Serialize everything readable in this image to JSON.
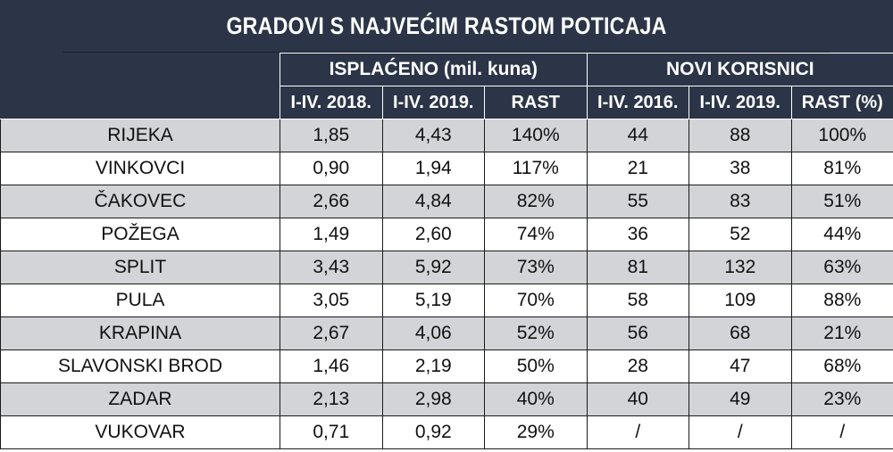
{
  "title": "GRADOVI S NAJVEĆIM RASTOM POTICAJA",
  "group_headers": {
    "isplaceno": "ISPLAĆENO (mil. kuna)",
    "novi_korisnici": "NOVI KORISNICI"
  },
  "columns": [
    "I-IV. 2018.",
    "I-IV. 2019.",
    "RAST",
    "I-IV. 2016.",
    "I-IV. 2019.",
    "RAST (%)"
  ],
  "rows": [
    {
      "city": "RIJEKA",
      "p2018": "1,85",
      "p2019": "4,43",
      "rast": "140%",
      "k2016": "44",
      "k2019": "88",
      "krast": "100%"
    },
    {
      "city": "VINKOVCI",
      "p2018": "0,90",
      "p2019": "1,94",
      "rast": "117%",
      "k2016": "21",
      "k2019": "38",
      "krast": "81%"
    },
    {
      "city": "ČAKOVEC",
      "p2018": "2,66",
      "p2019": "4,84",
      "rast": "82%",
      "k2016": "55",
      "k2019": "83",
      "krast": "51%"
    },
    {
      "city": "POŽEGA",
      "p2018": "1,49",
      "p2019": "2,60",
      "rast": "74%",
      "k2016": "36",
      "k2019": "52",
      "krast": "44%"
    },
    {
      "city": "SPLIT",
      "p2018": "3,43",
      "p2019": "5,92",
      "rast": "73%",
      "k2016": "81",
      "k2019": "132",
      "krast": "63%"
    },
    {
      "city": "PULA",
      "p2018": "3,05",
      "p2019": "5,19",
      "rast": "70%",
      "k2016": "58",
      "k2019": "109",
      "krast": "88%"
    },
    {
      "city": "KRAPINA",
      "p2018": "2,67",
      "p2019": "4,06",
      "rast": "52%",
      "k2016": "56",
      "k2019": "68",
      "krast": "21%"
    },
    {
      "city": "SLAVONSKI BROD",
      "p2018": "1,46",
      "p2019": "2,19",
      "rast": "50%",
      "k2016": "28",
      "k2019": "47",
      "krast": "68%"
    },
    {
      "city": "ZADAR",
      "p2018": "2,13",
      "p2019": "2,98",
      "rast": "40%",
      "k2016": "40",
      "k2019": "49",
      "krast": "23%"
    },
    {
      "city": "VUKOVAR",
      "p2018": "0,71",
      "p2019": "0,92",
      "rast": "29%",
      "k2016": "/",
      "k2019": "/",
      "krast": "/"
    }
  ],
  "colors": {
    "header_bg": "#2b3547",
    "row_shade": "#d3d4d8",
    "row_plain": "#ffffff"
  }
}
